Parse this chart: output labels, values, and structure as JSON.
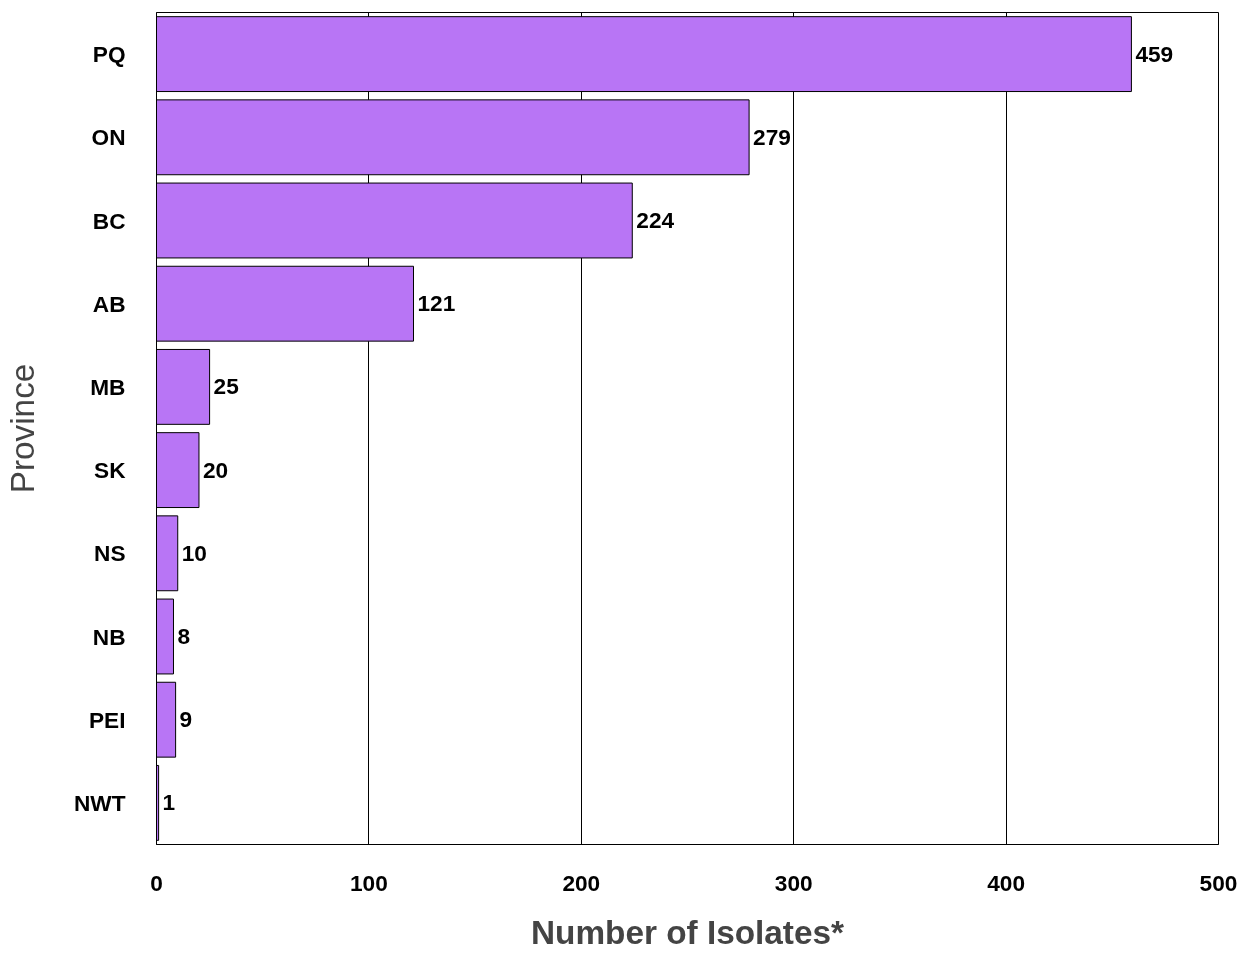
{
  "chart_data": {
    "type": "bar",
    "orientation": "horizontal",
    "xlabel": "Number of Isolates*",
    "ylabel": "Province",
    "categories": [
      "PQ",
      "ON",
      "BC",
      "AB",
      "MB",
      "SK",
      "NS",
      "NB",
      "PEI",
      "NWT"
    ],
    "values": [
      459,
      279,
      224,
      121,
      25,
      20,
      10,
      8,
      9,
      1
    ],
    "color": "#b875f5",
    "xlim": [
      0,
      500
    ],
    "xticks": [
      0,
      100,
      200,
      300,
      400,
      500
    ],
    "grid": "x",
    "data_labels": true
  }
}
